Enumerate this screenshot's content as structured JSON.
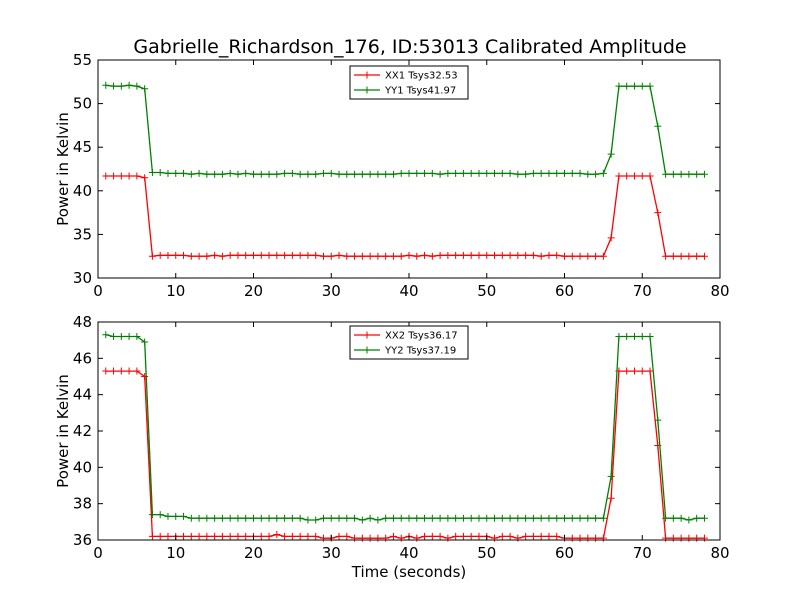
{
  "title": "Gabrielle_Richardson_176, ID:53013 Calibrated Amplitude",
  "chart_data": [
    {
      "type": "line",
      "xlabel": "",
      "ylabel": "Power in Kelvin",
      "xlim": [
        0,
        80
      ],
      "ylim": [
        30,
        55
      ],
      "xticks": [
        0,
        10,
        20,
        30,
        40,
        50,
        60,
        70,
        80
      ],
      "yticks": [
        30,
        35,
        40,
        45,
        50,
        55
      ],
      "grid": false,
      "legend": "top-center",
      "x": [
        1,
        2,
        3,
        4,
        5,
        6,
        7,
        8,
        9,
        10,
        11,
        12,
        13,
        14,
        15,
        16,
        17,
        18,
        19,
        20,
        21,
        22,
        23,
        24,
        25,
        26,
        27,
        28,
        29,
        30,
        31,
        32,
        33,
        34,
        35,
        36,
        37,
        38,
        39,
        40,
        41,
        42,
        43,
        44,
        45,
        46,
        47,
        48,
        49,
        50,
        51,
        52,
        53,
        54,
        55,
        56,
        57,
        58,
        59,
        60,
        61,
        62,
        63,
        64,
        65,
        66,
        67,
        68,
        69,
        70,
        71,
        72,
        73,
        74,
        75,
        76,
        77,
        78
      ],
      "series": [
        {
          "name": "XX1 Tsys32.53",
          "color": "#ff0000",
          "values": [
            41.7,
            41.7,
            41.7,
            41.7,
            41.7,
            41.5,
            32.5,
            32.6,
            32.6,
            32.6,
            32.6,
            32.5,
            32.5,
            32.5,
            32.6,
            32.5,
            32.6,
            32.6,
            32.6,
            32.6,
            32.6,
            32.6,
            32.6,
            32.6,
            32.6,
            32.6,
            32.6,
            32.6,
            32.5,
            32.5,
            32.6,
            32.5,
            32.5,
            32.5,
            32.5,
            32.5,
            32.5,
            32.5,
            32.5,
            32.6,
            32.5,
            32.6,
            32.5,
            32.6,
            32.6,
            32.6,
            32.6,
            32.6,
            32.6,
            32.6,
            32.6,
            32.6,
            32.6,
            32.6,
            32.6,
            32.6,
            32.5,
            32.6,
            32.6,
            32.5,
            32.5,
            32.5,
            32.5,
            32.5,
            32.5,
            34.6,
            41.7,
            41.7,
            41.7,
            41.7,
            41.7,
            37.5,
            32.5,
            32.5,
            32.5,
            32.5,
            32.5,
            32.5
          ]
        },
        {
          "name": "YY1 Tsys41.97",
          "color": "#008000",
          "values": [
            52.1,
            52.0,
            52.0,
            52.1,
            52.0,
            51.7,
            42.1,
            42.1,
            42.0,
            42.0,
            42.0,
            41.9,
            42.0,
            41.9,
            41.9,
            41.9,
            42.0,
            41.9,
            42.0,
            41.9,
            41.9,
            41.9,
            41.9,
            42.0,
            42.0,
            41.9,
            41.9,
            41.9,
            42.0,
            42.0,
            41.9,
            41.9,
            41.9,
            41.9,
            41.9,
            41.9,
            41.9,
            41.9,
            42.0,
            42.0,
            42.0,
            42.0,
            42.0,
            41.9,
            42.0,
            42.0,
            42.0,
            42.0,
            42.0,
            42.0,
            42.0,
            42.0,
            42.0,
            41.9,
            41.9,
            42.0,
            42.0,
            42.0,
            42.0,
            42.0,
            42.0,
            42.0,
            41.9,
            41.9,
            42.0,
            44.2,
            52.0,
            52.0,
            52.0,
            52.0,
            52.0,
            47.4,
            41.9,
            41.9,
            41.9,
            41.9,
            41.9,
            41.9
          ]
        }
      ]
    },
    {
      "type": "line",
      "xlabel": "Time (seconds)",
      "ylabel": "Power in Kelvin",
      "xlim": [
        0,
        80
      ],
      "ylim": [
        36,
        48
      ],
      "xticks": [
        0,
        10,
        20,
        30,
        40,
        50,
        60,
        70,
        80
      ],
      "yticks": [
        36,
        38,
        40,
        42,
        44,
        46,
        48
      ],
      "grid": false,
      "legend": "top-center",
      "x": [
        1,
        2,
        3,
        4,
        5,
        6,
        7,
        8,
        9,
        10,
        11,
        12,
        13,
        14,
        15,
        16,
        17,
        18,
        19,
        20,
        21,
        22,
        23,
        24,
        25,
        26,
        27,
        28,
        29,
        30,
        31,
        32,
        33,
        34,
        35,
        36,
        37,
        38,
        39,
        40,
        41,
        42,
        43,
        44,
        45,
        46,
        47,
        48,
        49,
        50,
        51,
        52,
        53,
        54,
        55,
        56,
        57,
        58,
        59,
        60,
        61,
        62,
        63,
        64,
        65,
        66,
        67,
        68,
        69,
        70,
        71,
        72,
        73,
        74,
        75,
        76,
        77,
        78
      ],
      "series": [
        {
          "name": "XX2 Tsys36.17",
          "color": "#ff0000",
          "values": [
            45.3,
            45.3,
            45.3,
            45.3,
            45.3,
            45.0,
            36.2,
            36.2,
            36.2,
            36.2,
            36.2,
            36.2,
            36.2,
            36.2,
            36.2,
            36.2,
            36.2,
            36.2,
            36.2,
            36.2,
            36.2,
            36.2,
            36.3,
            36.2,
            36.2,
            36.2,
            36.2,
            36.2,
            36.1,
            36.1,
            36.2,
            36.2,
            36.1,
            36.1,
            36.1,
            36.1,
            36.1,
            36.2,
            36.1,
            36.2,
            36.1,
            36.2,
            36.2,
            36.2,
            36.1,
            36.2,
            36.2,
            36.2,
            36.2,
            36.2,
            36.1,
            36.2,
            36.2,
            36.1,
            36.2,
            36.2,
            36.2,
            36.2,
            36.2,
            36.1,
            36.1,
            36.1,
            36.1,
            36.1,
            36.1,
            38.3,
            45.3,
            45.3,
            45.3,
            45.3,
            45.3,
            41.2,
            36.1,
            36.1,
            36.1,
            36.1,
            36.1,
            36.1
          ]
        },
        {
          "name": "YY2 Tsys37.19",
          "color": "#008000",
          "values": [
            47.3,
            47.2,
            47.2,
            47.2,
            47.2,
            46.9,
            37.4,
            37.4,
            37.3,
            37.3,
            37.3,
            37.2,
            37.2,
            37.2,
            37.2,
            37.2,
            37.2,
            37.2,
            37.2,
            37.2,
            37.2,
            37.2,
            37.2,
            37.2,
            37.2,
            37.2,
            37.1,
            37.1,
            37.2,
            37.2,
            37.2,
            37.2,
            37.2,
            37.1,
            37.2,
            37.1,
            37.2,
            37.2,
            37.2,
            37.2,
            37.2,
            37.2,
            37.2,
            37.2,
            37.2,
            37.2,
            37.2,
            37.2,
            37.2,
            37.2,
            37.2,
            37.2,
            37.2,
            37.2,
            37.2,
            37.2,
            37.2,
            37.2,
            37.2,
            37.2,
            37.2,
            37.2,
            37.2,
            37.2,
            37.2,
            39.5,
            47.2,
            47.2,
            47.2,
            47.2,
            47.2,
            42.6,
            37.2,
            37.2,
            37.2,
            37.1,
            37.2,
            37.2
          ]
        }
      ]
    }
  ]
}
